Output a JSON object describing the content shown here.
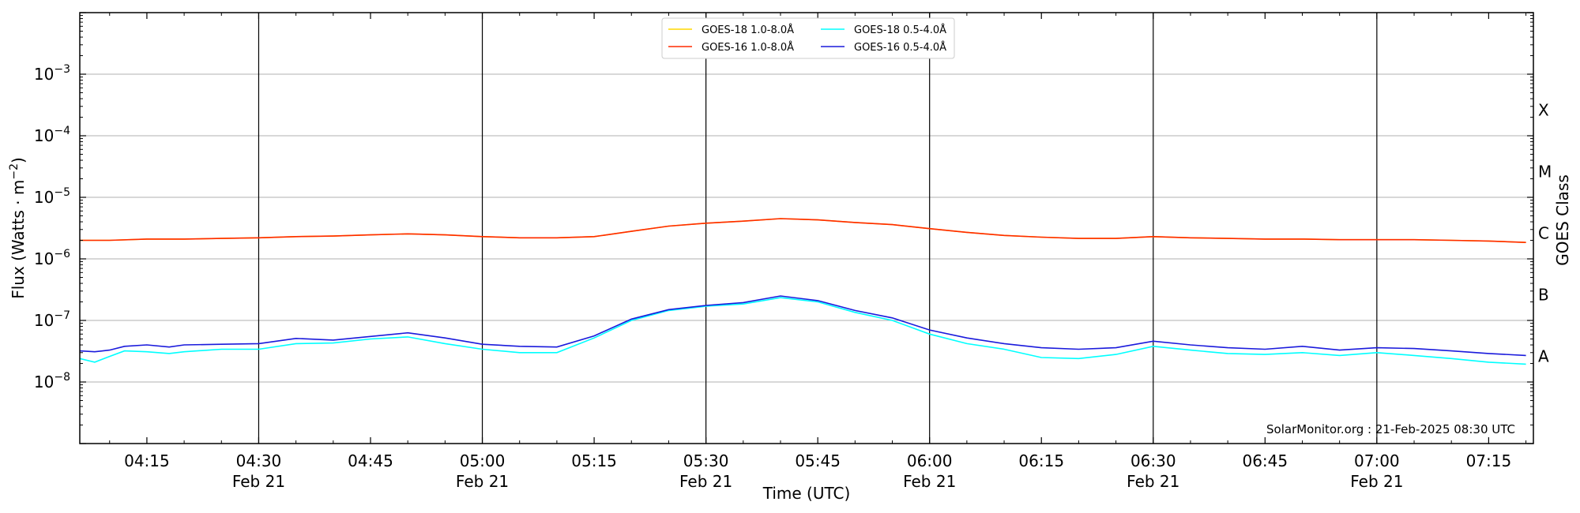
{
  "chart_data": {
    "type": "line",
    "xlabel": "Time (UTC)",
    "ylabel": "Flux (Watts · m⁻²)",
    "ylabel_right": "GOES Class",
    "y_scale": "log",
    "xlim": [
      "04:06",
      "07:21"
    ],
    "ylim": [
      1e-09,
      0.01
    ],
    "y_ticks": [
      {
        "value": 1e-08,
        "base": "10",
        "exp": "−8"
      },
      {
        "value": 1e-07,
        "base": "10",
        "exp": "−7"
      },
      {
        "value": 1e-06,
        "base": "10",
        "exp": "−6"
      },
      {
        "value": 1e-05,
        "base": "10",
        "exp": "−5"
      },
      {
        "value": 0.0001,
        "base": "10",
        "exp": "−4"
      },
      {
        "value": 0.001,
        "base": "10",
        "exp": "−3"
      }
    ],
    "x_ticks": [
      {
        "t": "04:15",
        "label": "04:15",
        "date": ""
      },
      {
        "t": "04:30",
        "label": "04:30",
        "date": "Feb 21"
      },
      {
        "t": "04:45",
        "label": "04:45",
        "date": ""
      },
      {
        "t": "05:00",
        "label": "05:00",
        "date": "Feb 21"
      },
      {
        "t": "05:15",
        "label": "05:15",
        "date": ""
      },
      {
        "t": "05:30",
        "label": "05:30",
        "date": "Feb 21"
      },
      {
        "t": "05:45",
        "label": "05:45",
        "date": ""
      },
      {
        "t": "06:00",
        "label": "06:00",
        "date": "Feb 21"
      },
      {
        "t": "06:15",
        "label": "06:15",
        "date": ""
      },
      {
        "t": "06:30",
        "label": "06:30",
        "date": "Feb 21"
      },
      {
        "t": "06:45",
        "label": "06:45",
        "date": ""
      },
      {
        "t": "07:00",
        "label": "07:00",
        "date": "Feb 21"
      },
      {
        "t": "07:15",
        "label": "07:15",
        "date": ""
      }
    ],
    "vlines": [
      "04:30",
      "05:00",
      "05:30",
      "06:00",
      "06:30",
      "07:00"
    ],
    "hgrid": [
      1e-08,
      1e-07,
      1e-06,
      1e-05,
      0.0001,
      0.001
    ],
    "goes_classes": [
      {
        "label": "A",
        "value": 2.6e-08
      },
      {
        "label": "B",
        "value": 2.6e-07
      },
      {
        "label": "C",
        "value": 2.6e-06
      },
      {
        "label": "M",
        "value": 2.6e-05
      },
      {
        "label": "X",
        "value": 0.00026
      }
    ],
    "legend": {
      "location": "upper-center"
    },
    "series": [
      {
        "name": "GOES-18 1.0-8.0Å",
        "color": "#ffd700",
        "x": [
          "04:06",
          "04:10",
          "04:15",
          "04:20",
          "04:25",
          "04:30",
          "04:35",
          "04:40",
          "04:45",
          "04:50",
          "04:55",
          "05:00",
          "05:05",
          "05:10",
          "05:15",
          "05:20",
          "05:25",
          "05:30",
          "05:35",
          "05:40",
          "05:45",
          "05:50",
          "05:55",
          "06:00",
          "06:05",
          "06:10",
          "06:15",
          "06:20",
          "06:25",
          "06:30",
          "06:35",
          "06:40",
          "06:45",
          "06:50",
          "06:55",
          "07:00",
          "07:05",
          "07:10",
          "07:15",
          "07:20"
        ],
        "y": [
          2e-06,
          2e-06,
          2.1e-06,
          2.1e-06,
          2.15e-06,
          2.2e-06,
          2.3e-06,
          2.35e-06,
          2.45e-06,
          2.55e-06,
          2.45e-06,
          2.3e-06,
          2.2e-06,
          2.2e-06,
          2.3e-06,
          2.8e-06,
          3.4e-06,
          3.8e-06,
          4.1e-06,
          4.5e-06,
          4.3e-06,
          3.9e-06,
          3.6e-06,
          3.1e-06,
          2.7e-06,
          2.4e-06,
          2.25e-06,
          2.15e-06,
          2.15e-06,
          2.3e-06,
          2.2e-06,
          2.15e-06,
          2.1e-06,
          2.1e-06,
          2.05e-06,
          2.05e-06,
          2.05e-06,
          2e-06,
          1.95e-06,
          1.85e-06
        ]
      },
      {
        "name": "GOES-16 1.0-8.0Å",
        "color": "#ff2a00",
        "x": [
          "04:06",
          "04:10",
          "04:15",
          "04:20",
          "04:25",
          "04:30",
          "04:35",
          "04:40",
          "04:45",
          "04:50",
          "04:55",
          "05:00",
          "05:05",
          "05:10",
          "05:15",
          "05:20",
          "05:25",
          "05:30",
          "05:35",
          "05:40",
          "05:45",
          "05:50",
          "05:55",
          "06:00",
          "06:05",
          "06:10",
          "06:15",
          "06:20",
          "06:25",
          "06:30",
          "06:35",
          "06:40",
          "06:45",
          "06:50",
          "06:55",
          "07:00",
          "07:05",
          "07:10",
          "07:15",
          "07:20"
        ],
        "y": [
          2e-06,
          2e-06,
          2.1e-06,
          2.1e-06,
          2.15e-06,
          2.2e-06,
          2.3e-06,
          2.35e-06,
          2.45e-06,
          2.55e-06,
          2.45e-06,
          2.3e-06,
          2.2e-06,
          2.2e-06,
          2.3e-06,
          2.8e-06,
          3.4e-06,
          3.8e-06,
          4.1e-06,
          4.5e-06,
          4.3e-06,
          3.9e-06,
          3.6e-06,
          3.1e-06,
          2.7e-06,
          2.4e-06,
          2.25e-06,
          2.15e-06,
          2.15e-06,
          2.3e-06,
          2.2e-06,
          2.15e-06,
          2.1e-06,
          2.1e-06,
          2.05e-06,
          2.05e-06,
          2.05e-06,
          2e-06,
          1.95e-06,
          1.85e-06
        ]
      },
      {
        "name": "GOES-18 0.5-4.0Å",
        "color": "#00ffff",
        "x": [
          "04:06",
          "04:08",
          "04:10",
          "04:12",
          "04:15",
          "04:18",
          "04:20",
          "04:25",
          "04:30",
          "04:35",
          "04:40",
          "04:45",
          "04:50",
          "04:55",
          "05:00",
          "05:05",
          "05:10",
          "05:15",
          "05:20",
          "05:25",
          "05:30",
          "05:35",
          "05:40",
          "05:45",
          "05:50",
          "05:55",
          "06:00",
          "06:05",
          "06:10",
          "06:15",
          "06:20",
          "06:25",
          "06:30",
          "06:35",
          "06:40",
          "06:45",
          "06:50",
          "06:55",
          "07:00",
          "07:05",
          "07:10",
          "07:15",
          "07:20"
        ],
        "y": [
          2.4e-08,
          2.1e-08,
          2.6e-08,
          3.2e-08,
          3.1e-08,
          2.9e-08,
          3.1e-08,
          3.4e-08,
          3.4e-08,
          4.2e-08,
          4.3e-08,
          5e-08,
          5.4e-08,
          4.2e-08,
          3.4e-08,
          3e-08,
          3e-08,
          5.2e-08,
          1e-07,
          1.45e-07,
          1.7e-07,
          1.85e-07,
          2.35e-07,
          2e-07,
          1.35e-07,
          1e-07,
          6e-08,
          4.2e-08,
          3.4e-08,
          2.5e-08,
          2.4e-08,
          2.8e-08,
          3.8e-08,
          3.3e-08,
          2.9e-08,
          2.8e-08,
          3e-08,
          2.7e-08,
          3e-08,
          2.7e-08,
          2.4e-08,
          2.1e-08,
          1.95e-08
        ]
      },
      {
        "name": "GOES-16 0.5-4.0Å",
        "color": "#1a1adc",
        "x": [
          "04:06",
          "04:08",
          "04:10",
          "04:12",
          "04:15",
          "04:18",
          "04:20",
          "04:25",
          "04:30",
          "04:35",
          "04:40",
          "04:45",
          "04:50",
          "04:55",
          "05:00",
          "05:05",
          "05:10",
          "05:15",
          "05:20",
          "05:25",
          "05:30",
          "05:35",
          "05:40",
          "05:45",
          "05:50",
          "05:55",
          "06:00",
          "06:05",
          "06:10",
          "06:15",
          "06:20",
          "06:25",
          "06:30",
          "06:35",
          "06:40",
          "06:45",
          "06:50",
          "06:55",
          "07:00",
          "07:05",
          "07:10",
          "07:15",
          "07:20"
        ],
        "y": [
          3.2e-08,
          3.1e-08,
          3.3e-08,
          3.8e-08,
          4e-08,
          3.7e-08,
          4e-08,
          4.1e-08,
          4.2e-08,
          5.1e-08,
          4.8e-08,
          5.5e-08,
          6.3e-08,
          5.2e-08,
          4.1e-08,
          3.8e-08,
          3.7e-08,
          5.6e-08,
          1.05e-07,
          1.5e-07,
          1.75e-07,
          1.95e-07,
          2.5e-07,
          2.1e-07,
          1.45e-07,
          1.1e-07,
          7e-08,
          5.2e-08,
          4.2e-08,
          3.6e-08,
          3.4e-08,
          3.6e-08,
          4.6e-08,
          4e-08,
          3.6e-08,
          3.4e-08,
          3.8e-08,
          3.3e-08,
          3.6e-08,
          3.5e-08,
          3.2e-08,
          2.9e-08,
          2.7e-08
        ]
      }
    ]
  },
  "watermark": "SolarMonitor.org : 21-Feb-2025 08:30 UTC"
}
